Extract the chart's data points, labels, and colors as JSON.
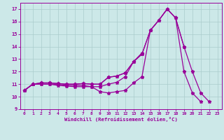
{
  "xlabel": "Windchill (Refroidissement éolien,°C)",
  "xlim": [
    -0.5,
    23.5
  ],
  "ylim": [
    9,
    17.5
  ],
  "yticks": [
    9,
    10,
    11,
    12,
    13,
    14,
    15,
    16,
    17
  ],
  "xticks": [
    0,
    1,
    2,
    3,
    4,
    5,
    6,
    7,
    8,
    9,
    10,
    11,
    12,
    13,
    14,
    15,
    16,
    17,
    18,
    19,
    20,
    21,
    22,
    23
  ],
  "bg_color": "#cce8e8",
  "grid_color": "#aacccc",
  "line_color": "#990099",
  "line_width": 0.9,
  "marker": "*",
  "marker_size": 3.5,
  "curves": [
    [
      10.5,
      11.0,
      11.0,
      11.0,
      11.0,
      10.9,
      10.9,
      10.9,
      10.8,
      10.4,
      10.3,
      10.4,
      10.5,
      11.1,
      11.6,
      15.3,
      16.1,
      17.0,
      16.3,
      12.0,
      10.3,
      9.6,
      null,
      null
    ],
    [
      10.5,
      11.0,
      11.0,
      11.0,
      10.9,
      10.85,
      10.8,
      10.8,
      10.8,
      10.8,
      11.0,
      11.15,
      11.6,
      12.8,
      13.5,
      null,
      null,
      null,
      null,
      null,
      null,
      null,
      null,
      null
    ],
    [
      10.5,
      11.0,
      11.1,
      11.1,
      11.05,
      11.0,
      11.0,
      11.05,
      11.0,
      11.0,
      11.55,
      11.65,
      11.9,
      12.8,
      13.4,
      15.3,
      16.1,
      17.0,
      16.3,
      14.0,
      null,
      null,
      null,
      null
    ],
    [
      10.5,
      11.0,
      11.1,
      11.1,
      11.05,
      11.0,
      11.0,
      11.05,
      11.0,
      11.0,
      11.55,
      11.65,
      11.9,
      12.8,
      13.4,
      15.3,
      16.1,
      17.0,
      16.3,
      14.0,
      12.0,
      10.3,
      9.6,
      null
    ]
  ]
}
